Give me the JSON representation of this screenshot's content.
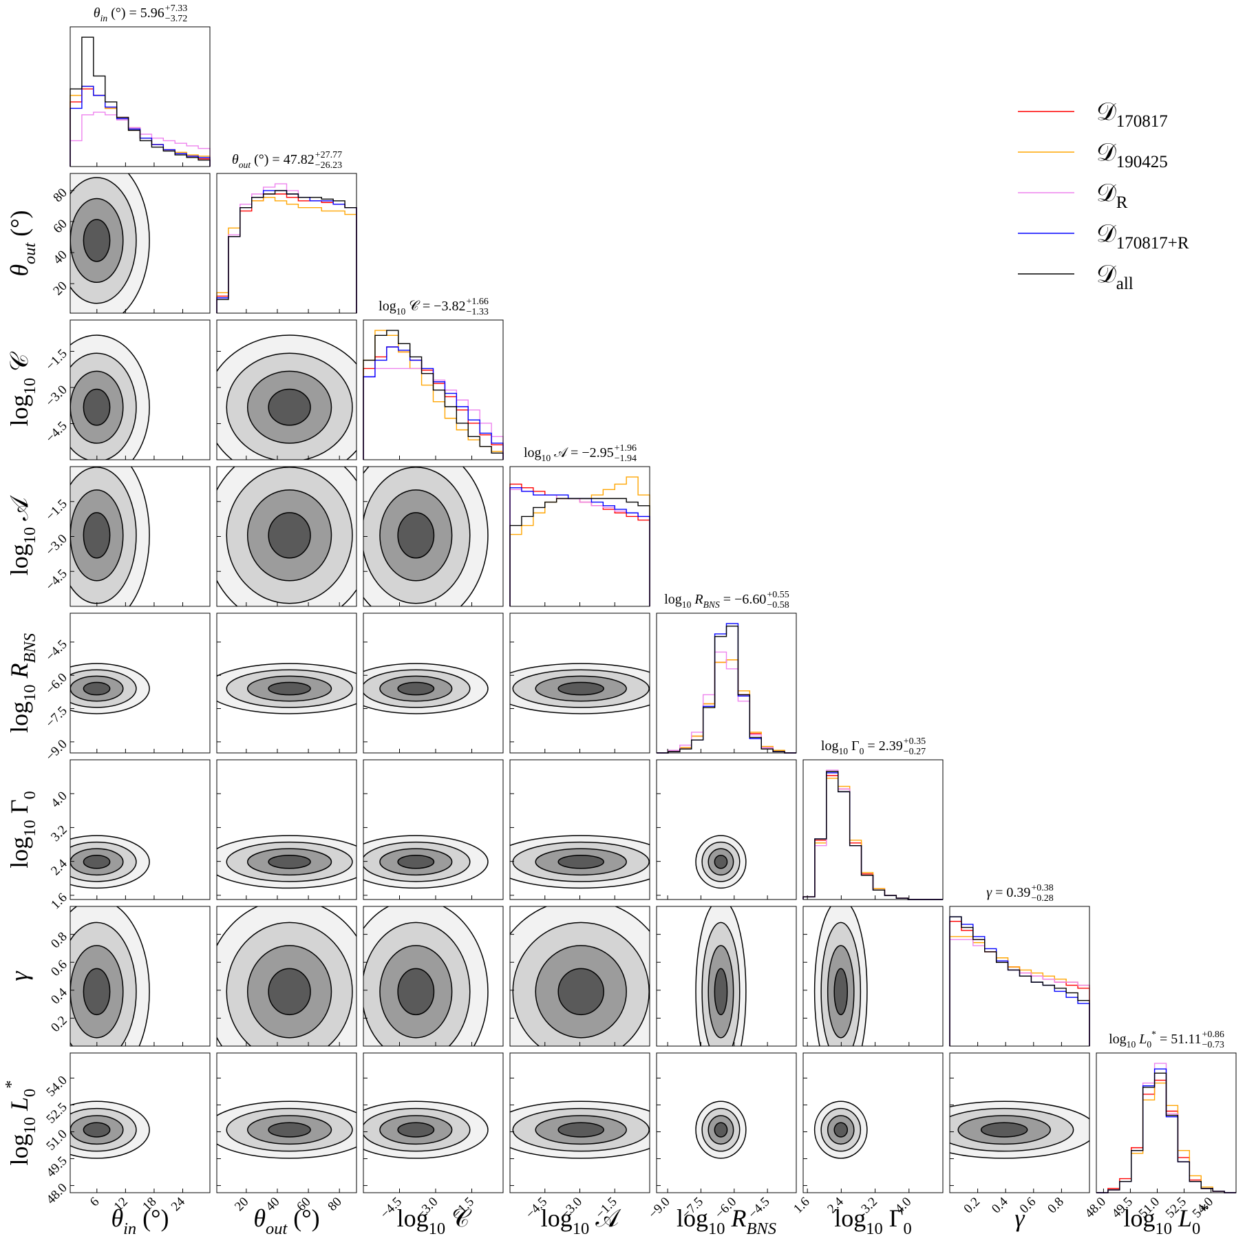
{
  "chart_data": {
    "type": "corner",
    "equals": "=",
    "series": [
      {
        "name": "𝒟170817",
        "color": "#ff0000",
        "values": [
          [
            50,
            60,
            55,
            45,
            38,
            30,
            22,
            17,
            13,
            10,
            8,
            6
          ],
          [
            10,
            45,
            60,
            66,
            70,
            70,
            68,
            66,
            66,
            65,
            64,
            62
          ],
          [
            55,
            62,
            68,
            65,
            60,
            54,
            46,
            38,
            30,
            22,
            15,
            9
          ],
          [
            68,
            66,
            64,
            62,
            60,
            60,
            58,
            56,
            54,
            52,
            50,
            48
          ],
          [
            0,
            1,
            4,
            13,
            38,
            70,
            72,
            45,
            15,
            4,
            1,
            0
          ],
          [
            2,
            44,
            92,
            82,
            42,
            19,
            8,
            3,
            1,
            0,
            0,
            0
          ],
          [
            82,
            76,
            70,
            62,
            56,
            52,
            48,
            46,
            44,
            42,
            40,
            38
          ],
          [
            0,
            3,
            10,
            32,
            70,
            80,
            58,
            25,
            9,
            3,
            1,
            0
          ]
        ]
      },
      {
        "name": "𝒟190425",
        "color": "#ffa500",
        "values": [
          [
            55,
            62,
            55,
            45,
            36,
            28,
            22,
            17,
            13,
            11,
            9,
            8
          ],
          [
            12,
            50,
            62,
            66,
            68,
            66,
            64,
            62,
            62,
            60,
            60,
            58
          ],
          [
            60,
            78,
            75,
            65,
            55,
            45,
            35,
            25,
            18,
            12,
            8,
            5
          ],
          [
            40,
            45,
            52,
            58,
            60,
            60,
            60,
            62,
            65,
            68,
            72,
            62
          ],
          [
            0,
            1,
            4,
            13,
            38,
            70,
            72,
            48,
            16,
            5,
            2,
            0
          ],
          [
            2,
            42,
            90,
            84,
            44,
            20,
            8,
            3,
            1,
            0,
            0,
            0
          ],
          [
            72,
            72,
            68,
            62,
            58,
            52,
            50,
            48,
            46,
            44,
            42,
            40
          ],
          [
            0,
            2,
            8,
            28,
            66,
            78,
            62,
            30,
            12,
            4,
            1,
            0
          ]
        ]
      },
      {
        "name": "𝒟R",
        "color": "#ee82ee",
        "values": [
          [
            20,
            40,
            42,
            40,
            36,
            30,
            25,
            22,
            20,
            18,
            16,
            14
          ],
          [
            9,
            46,
            64,
            70,
            74,
            76,
            72,
            68,
            66,
            66,
            64,
            62
          ],
          [
            50,
            55,
            55,
            55,
            55,
            52,
            48,
            42,
            36,
            30,
            22,
            14
          ],
          [
            65,
            64,
            62,
            62,
            60,
            60,
            58,
            56,
            55,
            53,
            52,
            50
          ],
          [
            0,
            2,
            6,
            16,
            45,
            78,
            65,
            40,
            14,
            4,
            1,
            0
          ],
          [
            2,
            40,
            96,
            82,
            40,
            18,
            7,
            3,
            1,
            0,
            0,
            0
          ],
          [
            70,
            70,
            66,
            62,
            56,
            50,
            48,
            46,
            44,
            42,
            42,
            40
          ],
          [
            0,
            2,
            8,
            30,
            78,
            92,
            56,
            22,
            8,
            3,
            1,
            0
          ]
        ]
      },
      {
        "name": "𝒟170817+R",
        "color": "#0000ff",
        "values": [
          [
            45,
            62,
            55,
            46,
            37,
            29,
            22,
            17,
            13,
            10,
            8,
            7
          ],
          [
            9,
            45,
            62,
            68,
            72,
            72,
            70,
            68,
            66,
            66,
            64,
            62
          ],
          [
            50,
            60,
            68,
            66,
            60,
            55,
            47,
            40,
            32,
            24,
            16,
            10
          ],
          [
            66,
            64,
            62,
            62,
            62,
            60,
            60,
            58,
            56,
            54,
            52,
            50
          ],
          [
            0,
            1,
            3,
            10,
            36,
            92,
            100,
            44,
            11,
            3,
            1,
            0
          ],
          [
            2,
            45,
            94,
            80,
            40,
            18,
            7,
            3,
            1,
            0,
            0,
            0
          ],
          [
            85,
            80,
            72,
            64,
            56,
            50,
            46,
            42,
            40,
            36,
            32,
            28
          ],
          [
            0,
            2,
            8,
            30,
            76,
            88,
            54,
            22,
            8,
            3,
            1,
            0
          ]
        ]
      },
      {
        "name": "𝒟all",
        "color": "#000000",
        "values": [
          [
            60,
            100,
            70,
            50,
            38,
            28,
            20,
            15,
            12,
            9,
            7,
            5
          ],
          [
            8,
            45,
            62,
            68,
            70,
            72,
            70,
            68,
            68,
            67,
            66,
            62
          ],
          [
            60,
            75,
            78,
            70,
            62,
            52,
            42,
            32,
            22,
            14,
            8,
            4
          ],
          [
            45,
            50,
            55,
            58,
            60,
            60,
            60,
            60,
            60,
            60,
            58,
            56
          ],
          [
            0,
            1,
            3,
            10,
            35,
            90,
            98,
            45,
            12,
            3,
            1,
            0
          ],
          [
            2,
            45,
            95,
            80,
            40,
            18,
            7,
            3,
            1,
            0,
            0,
            0
          ],
          [
            85,
            78,
            70,
            62,
            55,
            50,
            46,
            42,
            40,
            38,
            35,
            30
          ],
          [
            0,
            2,
            8,
            30,
            75,
            85,
            55,
            22,
            8,
            3,
            1,
            0
          ]
        ]
      }
    ],
    "parameters": [
      {
        "label": [
          {
            "text": "θ",
            "style": "italic"
          },
          {
            "text": "in",
            "style": "sub-italic"
          },
          {
            "text": " (°)",
            "style": "normal"
          }
        ],
        "lim": [
          0.4,
          29.7
        ],
        "ticks": [
          6,
          12,
          18,
          24
        ],
        "median": 5.96,
        "plus": {
          "value": 7.33,
          "label": "+7.33"
        },
        "minus": {
          "value": 3.72,
          "label": "−3.72"
        }
      },
      {
        "label": [
          {
            "text": "θ",
            "style": "italic"
          },
          {
            "text": "out",
            "style": "sub-italic"
          },
          {
            "text": " (°)",
            "style": "normal"
          }
        ],
        "lim": [
          1,
          91
        ],
        "ticks": [
          20,
          40,
          60,
          80
        ],
        "median": 47.82,
        "plus": {
          "value": 27.77,
          "label": "+27.77"
        },
        "minus": {
          "value": 26.23,
          "label": "−26.23"
        }
      },
      {
        "label": [
          {
            "text": "log",
            "style": "normal"
          },
          {
            "text": "10",
            "style": "sub"
          },
          {
            "text": " 𝒞",
            "style": "normal"
          }
        ],
        "lim": [
          -6,
          -0.2
        ],
        "ticks": [
          {
            "value": -4.5,
            "label": "−4.5"
          },
          {
            "value": -3,
            "label": "−3.0"
          },
          {
            "value": -1.5,
            "label": "−1.5"
          }
        ],
        "median": {
          "value": -3.82,
          "label": "−3.82"
        },
        "plus": {
          "value": 1.66,
          "label": "+1.66"
        },
        "minus": {
          "value": 1.33,
          "label": "−1.33"
        }
      },
      {
        "label": [
          {
            "text": "log",
            "style": "normal"
          },
          {
            "text": "10",
            "style": "sub"
          },
          {
            "text": " 𝒜",
            "style": "normal"
          }
        ],
        "lim": [
          -6,
          0
        ],
        "ticks": [
          {
            "value": -4.5,
            "label": "−4.5"
          },
          {
            "value": -3,
            "label": "−3.0"
          },
          {
            "value": -1.5,
            "label": "−1.5"
          }
        ],
        "median": {
          "value": -2.95,
          "label": "−2.95"
        },
        "plus": {
          "value": 1.96,
          "label": "+1.96"
        },
        "minus": {
          "value": 1.94,
          "label": "−1.94"
        }
      },
      {
        "label": [
          {
            "text": "log",
            "style": "normal"
          },
          {
            "text": "10",
            "style": "sub"
          },
          {
            "text": " R",
            "style": "italic"
          },
          {
            "text": "BNS",
            "style": "sub-italic"
          }
        ],
        "lim": [
          -9.5,
          -3.2
        ],
        "ticks": [
          {
            "value": -9,
            "label": "−9.0"
          },
          {
            "value": -7.5,
            "label": "−7.5"
          },
          {
            "value": -6,
            "label": "−6.0"
          },
          {
            "value": -4.5,
            "label": "−4.5"
          }
        ],
        "median": {
          "value": -6.6,
          "label": "−6.60"
        },
        "plus": {
          "value": 0.55,
          "label": "+0.55"
        },
        "minus": {
          "value": 0.58,
          "label": "−0.58"
        }
      },
      {
        "label": [
          {
            "text": "log",
            "style": "normal"
          },
          {
            "text": "10",
            "style": "sub"
          },
          {
            "text": " Γ",
            "style": "normal"
          },
          {
            "text": "0",
            "style": "sub"
          }
        ],
        "lim": [
          1.5,
          4.8
        ],
        "ticks": [
          1.6,
          2.4,
          3.2,
          {
            "value": 4,
            "label": "4.0"
          }
        ],
        "median": 2.39,
        "plus": {
          "value": 0.35,
          "label": "+0.35"
        },
        "minus": {
          "value": 0.27,
          "label": "−0.27"
        }
      },
      {
        "label": [
          {
            "text": "γ",
            "style": "italic"
          }
        ],
        "lim": [
          0,
          1
        ],
        "ticks": [
          0.2,
          0.4,
          0.6,
          0.8
        ],
        "median": 0.39,
        "plus": {
          "value": 0.38,
          "label": "+0.38"
        },
        "minus": {
          "value": 0.28,
          "label": "−0.28"
        }
      },
      {
        "label": [
          {
            "text": "log",
            "style": "normal"
          },
          {
            "text": "10",
            "style": "sub"
          },
          {
            "text": " L",
            "style": "italic"
          },
          {
            "text": "0",
            "style": "sub"
          },
          {
            "text": "*",
            "style": "sup"
          }
        ],
        "lim": [
          47.6,
          55.4
        ],
        "ticks": [
          {
            "value": 48,
            "label": "48.0"
          },
          49.5,
          {
            "value": 51,
            "label": "51.0"
          },
          52.5,
          {
            "value": 54,
            "label": "54.0"
          }
        ],
        "median": 51.11,
        "plus": {
          "value": 0.86,
          "label": "+0.86"
        },
        "minus": {
          "value": 0.73,
          "label": "−0.73"
        }
      }
    ]
  }
}
